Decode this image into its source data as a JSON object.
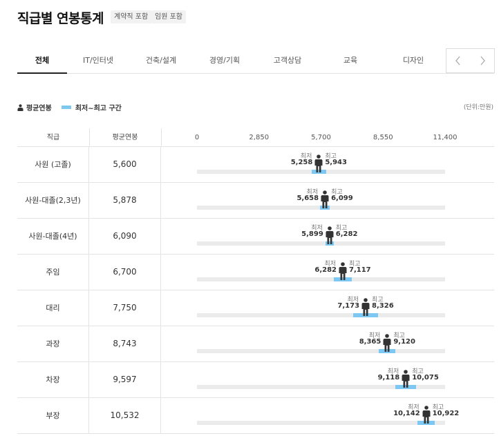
{
  "header": {
    "title": "직급별 연봉통계",
    "badges": [
      "계약직 포함",
      "임원 포함"
    ]
  },
  "tabs": [
    {
      "label": "전체",
      "active": true
    },
    {
      "label": "IT/인터넷",
      "active": false
    },
    {
      "label": "건축/설계",
      "active": false
    },
    {
      "label": "경영/기획",
      "active": false
    },
    {
      "label": "고객상담",
      "active": false
    },
    {
      "label": "교육",
      "active": false
    },
    {
      "label": "디자인",
      "active": false
    }
  ],
  "tab_nav": {
    "prev_icon": "chevron-left-icon",
    "next_icon": "chevron-right-icon"
  },
  "legend": {
    "average_label": "평균연봉",
    "range_label": "최저~최고 구간"
  },
  "unit_label": "(단위:만원)",
  "colors": {
    "range": "#7dc8f3",
    "track": "#ebebeb",
    "figure": "#333333"
  },
  "table_headers": {
    "rank": "직급",
    "average": "평균연봉"
  },
  "min_label": "최저",
  "max_label": "최고",
  "chart_data": {
    "type": "range",
    "xlim": [
      0,
      11400
    ],
    "ticks": [
      "0",
      "2,850",
      "5,700",
      "8,550",
      "11,400"
    ],
    "tick_values": [
      0,
      2850,
      5700,
      8550,
      11400
    ],
    "rows": [
      {
        "rank": "사원 (고졸)",
        "average": 5600,
        "average_label": "5,600",
        "min": 5258,
        "min_label": "5,258",
        "max": 5943,
        "max_label": "5,943"
      },
      {
        "rank": "사원-대졸(2,3년)",
        "average": 5878,
        "average_label": "5,878",
        "min": 5658,
        "min_label": "5,658",
        "max": 6099,
        "max_label": "6,099"
      },
      {
        "rank": "사원-대졸(4년)",
        "average": 6090,
        "average_label": "6,090",
        "min": 5899,
        "min_label": "5,899",
        "max": 6282,
        "max_label": "6,282"
      },
      {
        "rank": "주임",
        "average": 6700,
        "average_label": "6,700",
        "min": 6282,
        "min_label": "6,282",
        "max": 7117,
        "max_label": "7,117"
      },
      {
        "rank": "대리",
        "average": 7750,
        "average_label": "7,750",
        "min": 7173,
        "min_label": "7,173",
        "max": 8326,
        "max_label": "8,326"
      },
      {
        "rank": "과장",
        "average": 8743,
        "average_label": "8,743",
        "min": 8365,
        "min_label": "8,365",
        "max": 9120,
        "max_label": "9,120"
      },
      {
        "rank": "차장",
        "average": 9597,
        "average_label": "9,597",
        "min": 9118,
        "min_label": "9,118",
        "max": 10075,
        "max_label": "10,075"
      },
      {
        "rank": "부장",
        "average": 10532,
        "average_label": "10,532",
        "min": 10142,
        "min_label": "10,142",
        "max": 10922,
        "max_label": "10,922"
      }
    ]
  }
}
